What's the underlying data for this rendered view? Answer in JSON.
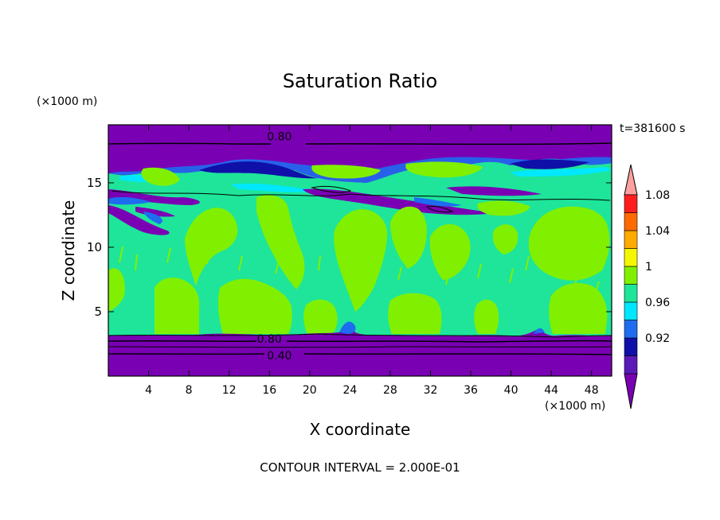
{
  "chart_data": {
    "type": "heatmap",
    "title": "Saturation Ratio",
    "xlabel": "X coordinate",
    "ylabel": "Z coordinate",
    "x_unit": "(×1000 m)",
    "y_unit": "(×1000 m)",
    "time_label": "t=381600 s",
    "footer": "CONTOUR INTERVAL = 2.000E-01",
    "xlim": [
      0,
      50
    ],
    "ylim": [
      0,
      19.5
    ],
    "x_ticks": [
      4,
      8,
      12,
      16,
      20,
      24,
      28,
      32,
      36,
      40,
      44,
      48
    ],
    "y_ticks": [
      5,
      10,
      15
    ],
    "contour_labels": [
      {
        "text": "0.80",
        "x": 17,
        "z": 18.6
      },
      {
        "text": "0.80",
        "x": 16,
        "z": 2.9
      },
      {
        "text": "0.40",
        "x": 17,
        "z": 1.6
      }
    ],
    "colorbar": {
      "labels": [
        "1.08",
        "1.04",
        "1",
        "0.96",
        "0.92"
      ],
      "bins": [
        {
          "lo": null,
          "hi": 0.9,
          "color": "#7a00b4"
        },
        {
          "lo": 0.9,
          "hi": 0.92,
          "color": "#5a1ab8"
        },
        {
          "lo": 0.92,
          "hi": 0.94,
          "color": "#0f10a8"
        },
        {
          "lo": 0.94,
          "hi": 0.96,
          "color": "#1e6cf0"
        },
        {
          "lo": 0.96,
          "hi": 0.98,
          "color": "#00e8ff"
        },
        {
          "lo": 0.98,
          "hi": 1.0,
          "color": "#1ee59a"
        },
        {
          "lo": 1.0,
          "hi": 1.02,
          "color": "#80f000"
        },
        {
          "lo": 1.02,
          "hi": 1.04,
          "color": "#f6f600"
        },
        {
          "lo": 1.04,
          "hi": 1.06,
          "color": "#ffaa00"
        },
        {
          "lo": 1.06,
          "hi": 1.08,
          "color": "#ff6a00"
        },
        {
          "lo": 1.08,
          "hi": 1.1,
          "color": "#ff1e1e"
        },
        {
          "lo": 1.1,
          "hi": null,
          "color": "#ffa0a0"
        }
      ]
    }
  }
}
